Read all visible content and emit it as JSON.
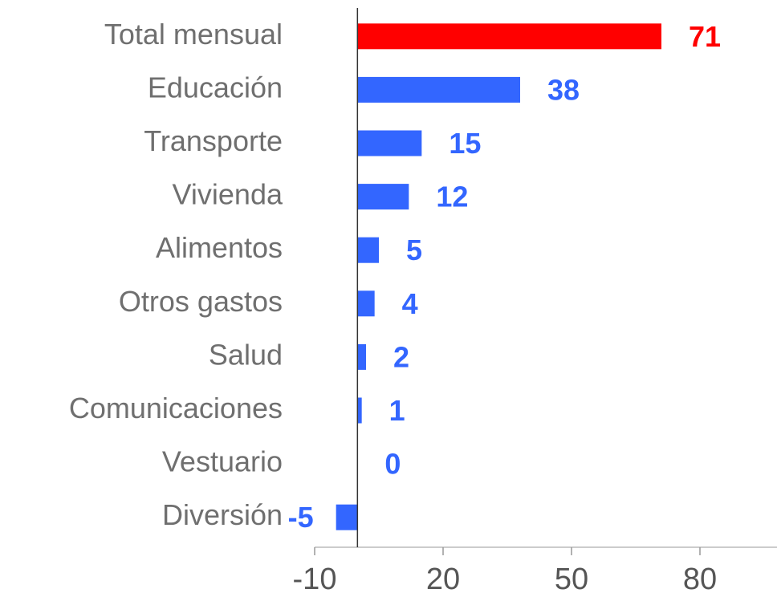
{
  "chart_data": {
    "type": "bar",
    "orientation": "horizontal",
    "categories": [
      "Total mensual",
      "Educación",
      "Transporte",
      "Vivienda",
      "Alimentos",
      "Otros gastos",
      "Salud",
      "Comunicaciones",
      "Vestuario",
      "Diversión"
    ],
    "values": [
      71,
      38,
      15,
      12,
      5,
      4,
      2,
      1,
      0,
      -5
    ],
    "colors": [
      "#ff0000",
      "#3366ff",
      "#3366ff",
      "#3366ff",
      "#3366ff",
      "#3366ff",
      "#3366ff",
      "#3366ff",
      "#3366ff",
      "#3366ff"
    ],
    "xlim": [
      -10,
      98
    ],
    "xticks": [
      -10,
      20,
      50,
      80
    ],
    "grid": false
  }
}
